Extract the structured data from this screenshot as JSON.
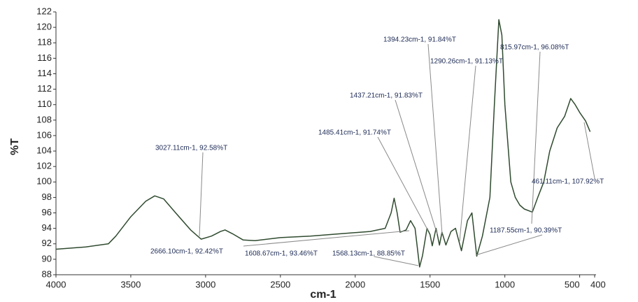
{
  "chart_data": {
    "type": "line",
    "x_label": "cm-1",
    "y_label": "%T",
    "color": "#2f4a2f",
    "x": [
      4000,
      3800,
      3650,
      3600,
      3500,
      3400,
      3340,
      3280,
      3200,
      3100,
      3030,
      2960,
      2900,
      2870,
      2820,
      2750,
      2670,
      2500,
      2300,
      2100,
      1900,
      1800,
      1760,
      1740,
      1720,
      1700,
      1660,
      1630,
      1600,
      1570,
      1550,
      1520,
      1500,
      1485,
      1460,
      1437,
      1420,
      1394,
      1360,
      1330,
      1290,
      1250,
      1220,
      1188,
      1150,
      1100,
      1070,
      1040,
      1020,
      1000,
      960,
      930,
      900,
      870,
      816,
      780,
      740,
      700,
      650,
      600,
      560,
      530,
      500,
      461,
      430
    ],
    "values": [
      91.3,
      91.6,
      92.0,
      93.0,
      95.5,
      97.5,
      98.2,
      97.8,
      96.0,
      93.8,
      92.6,
      93.0,
      93.6,
      93.8,
      93.3,
      92.5,
      92.4,
      92.8,
      93.0,
      93.3,
      93.6,
      94.0,
      96.0,
      97.9,
      96.0,
      93.5,
      93.8,
      95.0,
      94.0,
      89.0,
      90.5,
      94.0,
      93.2,
      91.74,
      94.0,
      91.83,
      93.5,
      91.84,
      93.6,
      94.0,
      91.1,
      95.0,
      96.0,
      90.4,
      93.0,
      98.0,
      110.0,
      121.0,
      119.0,
      110.0,
      100.0,
      98.0,
      97.0,
      96.5,
      96.1,
      98.0,
      100.0,
      104.0,
      107.0,
      108.5,
      110.8,
      110.0,
      109.0,
      107.9,
      106.5
    ],
    "xlim": [
      4000,
      400
    ],
    "ylim": [
      88,
      122
    ],
    "xticks": [
      4000,
      3500,
      3000,
      2500,
      2000,
      1500,
      1000,
      500,
      400
    ],
    "yticks": [
      88,
      90,
      92,
      94,
      96,
      98,
      100,
      102,
      104,
      106,
      108,
      110,
      112,
      114,
      116,
      118,
      120,
      122
    ],
    "annotations": [
      "3027.11cm-1, 92.58%T",
      "2666.10cm-1, 92.42%T",
      "1608.67cm-1, 93.46%T",
      "1568.13cm-1, 88.85%T",
      "1485.41cm-1, 91.74%T",
      "1437.21cm-1, 91.83%T",
      "1394.23cm-1, 91.84%T",
      "1290.26cm-1, 91.13%T",
      "815.97cm-1, 96.08%T",
      "1187.55cm-1, 90.39%T",
      "461.11cm-1, 107.92%T"
    ]
  }
}
